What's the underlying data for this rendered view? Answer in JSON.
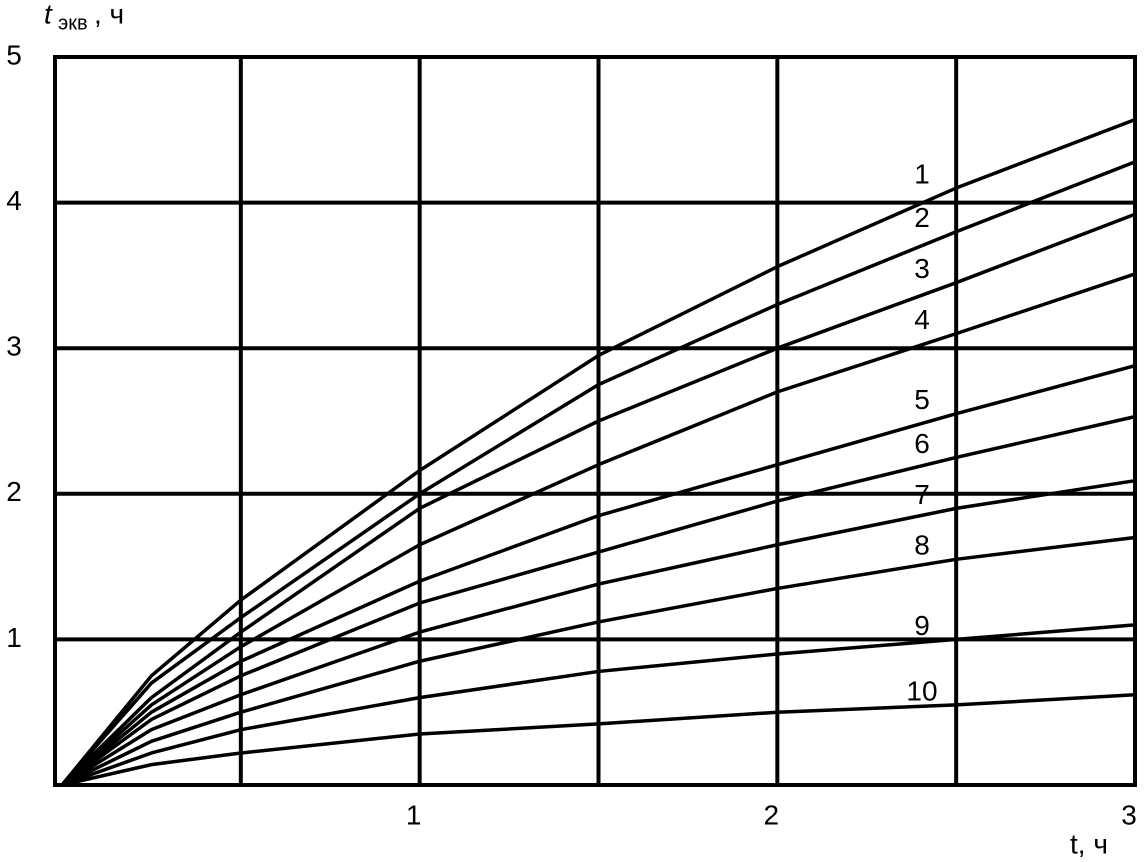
{
  "chart_data": {
    "type": "line",
    "ylabel": "t",
    "ylabel_sub": "экв",
    "ylabel_unit": " , ч",
    "xlabel": "t, ч",
    "x": [
      0,
      0.25,
      0.5,
      1,
      1.5,
      2,
      2.5,
      3
    ],
    "series": [
      {
        "name": "1",
        "color": "#000000",
        "values": [
          0,
          0.75,
          1.27,
          2.16,
          2.95,
          3.56,
          4.1,
          4.57
        ]
      },
      {
        "name": "2",
        "color": "#000000",
        "values": [
          0,
          0.7,
          1.15,
          2.0,
          2.75,
          3.3,
          3.8,
          4.28
        ]
      },
      {
        "name": "3",
        "color": "#000000",
        "values": [
          0,
          0.6,
          1.05,
          1.9,
          2.5,
          3.0,
          3.45,
          3.92
        ]
      },
      {
        "name": "4",
        "color": "#000000",
        "values": [
          0,
          0.55,
          0.95,
          1.65,
          2.2,
          2.7,
          3.1,
          3.51
        ]
      },
      {
        "name": "5",
        "color": "#000000",
        "values": [
          0,
          0.5,
          0.85,
          1.4,
          1.85,
          2.2,
          2.55,
          2.88
        ]
      },
      {
        "name": "6",
        "color": "#000000",
        "values": [
          0,
          0.45,
          0.75,
          1.25,
          1.6,
          1.95,
          2.25,
          2.53
        ]
      },
      {
        "name": "7",
        "color": "#000000",
        "values": [
          0,
          0.38,
          0.62,
          1.05,
          1.38,
          1.65,
          1.9,
          2.09
        ]
      },
      {
        "name": "8",
        "color": "#000000",
        "values": [
          0,
          0.3,
          0.5,
          0.85,
          1.12,
          1.35,
          1.55,
          1.7
        ]
      },
      {
        "name": "9",
        "color": "#000000",
        "values": [
          0,
          0.22,
          0.38,
          0.6,
          0.78,
          0.9,
          1.0,
          1.1
        ]
      },
      {
        "name": "10",
        "color": "#000000",
        "values": [
          0,
          0.14,
          0.22,
          0.35,
          0.42,
          0.5,
          0.55,
          0.62
        ]
      }
    ],
    "xlim": [
      0,
      3
    ],
    "ylim": [
      0,
      5
    ],
    "xticks": [
      1,
      2,
      3
    ],
    "yticks": [
      1,
      2,
      3,
      4,
      5
    ],
    "xgrid": [
      0.5,
      1,
      1.5,
      2,
      2.5
    ],
    "grid": true
  }
}
